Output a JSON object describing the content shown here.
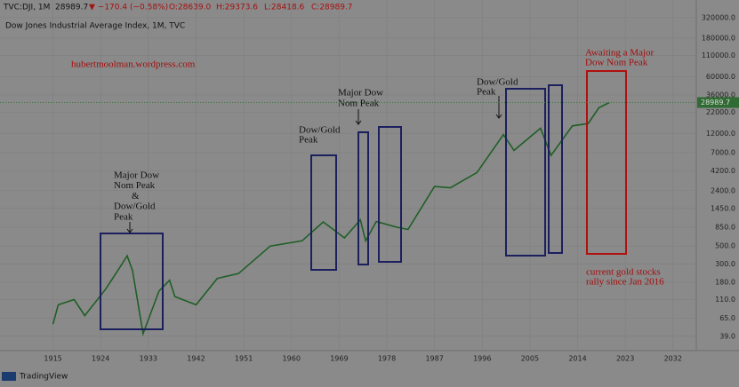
{
  "chart_data": {
    "type": "line",
    "title": "Dow Jones Industrial Average Index, 1M, TVC",
    "header": {
      "symbol": "TVC:DJI, 1M",
      "change": "▼ −170.4 (−0.58%)",
      "open": "O:28639.0",
      "high": "H:29373.6",
      "low": "L:28418.6",
      "close": "C:28989.7"
    },
    "last_price": 28989.7,
    "watermark": "hubertmoolman.wordpress.com",
    "annotations": {
      "a1": [
        "Major Dow",
        "Nom Peak",
        "&",
        "Dow/Gold",
        "Peak"
      ],
      "a2": [
        "Dow/Gold",
        "Peak"
      ],
      "a3": [
        "Major Dow",
        "Nom Peak"
      ],
      "a4": [
        "Dow/Gold",
        "Peak"
      ],
      "a5": [
        "Awaiting a Major",
        "Dow Nom Peak"
      ],
      "a6": [
        "current gold stocks",
        "rally since Jan 2016"
      ]
    },
    "brand": "TradingView",
    "log_scale": true,
    "grid": true,
    "x": [
      1915,
      1916,
      1919,
      1921,
      1925,
      1928,
      1929,
      1930,
      1932,
      1935,
      1937,
      1938,
      1942,
      1946,
      1950,
      1956,
      1962,
      1966,
      1970,
      1973,
      1974,
      1976,
      1980,
      1982,
      1987,
      1990,
      1995,
      2000,
      2002,
      2007,
      2009,
      2013,
      2016,
      2018,
      2020
    ],
    "series": [
      {
        "name": "DJI",
        "color": "#1f5f26",
        "values": [
          55,
          95,
          110,
          70,
          150,
          300,
          380,
          250,
          42,
          140,
          190,
          120,
          95,
          200,
          230,
          500,
          580,
          990,
          630,
          1050,
          580,
          1000,
          850,
          800,
          2700,
          2600,
          4000,
          11700,
          7500,
          14000,
          6500,
          15000,
          16000,
          25000,
          28990
        ]
      }
    ],
    "xlim": [
      1905,
      2036.4
    ],
    "xticks": [
      1915,
      1924,
      1933,
      1942,
      1951,
      1960,
      1969,
      1978,
      1987,
      1996,
      2005,
      2014,
      2023,
      2032
    ],
    "ylim": [
      26,
      410000
    ],
    "yticks": [
      {
        "value": 39,
        "label": "39.0"
      },
      {
        "value": 65,
        "label": "65.0"
      },
      {
        "value": 110,
        "label": "110.0"
      },
      {
        "value": 180,
        "label": "180.0"
      },
      {
        "value": 300,
        "label": "300.0"
      },
      {
        "value": 500,
        "label": "500.0"
      },
      {
        "value": 850,
        "label": "850.0"
      },
      {
        "value": 1450,
        "label": "1450.0"
      },
      {
        "value": 2400,
        "label": "2400.0"
      },
      {
        "value": 4200,
        "label": "4200.0"
      },
      {
        "value": 7000,
        "label": "7000.0"
      },
      {
        "value": 12000,
        "label": "12000.0"
      },
      {
        "value": 22000,
        "label": "22000.0"
      },
      {
        "value": 36000,
        "label": "36000.0"
      },
      {
        "value": 60000,
        "label": "60000.0"
      },
      {
        "value": 110000,
        "label": "110000.0"
      },
      {
        "value": 180000,
        "label": "180000.0"
      },
      {
        "value": 320000,
        "label": "320000.0"
      }
    ]
  }
}
